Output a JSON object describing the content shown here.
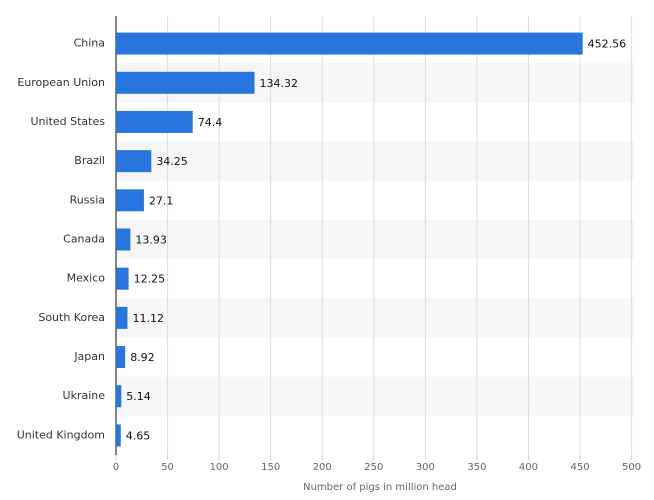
{
  "chart_data": {
    "type": "bar",
    "orientation": "horizontal",
    "categories": [
      "China",
      "European Union",
      "United States",
      "Brazil",
      "Russia",
      "Canada",
      "Mexico",
      "South Korea",
      "Japan",
      "Ukraine",
      "United Kingdom"
    ],
    "values": [
      452.56,
      134.32,
      74.4,
      34.25,
      27.1,
      13.93,
      12.25,
      11.12,
      8.92,
      5.14,
      4.65
    ],
    "color": "#2876dd",
    "xlabel": "Number of pigs in million head",
    "xlim": [
      0,
      500
    ],
    "xticks": [
      0,
      50,
      100,
      150,
      200,
      250,
      300,
      350,
      400,
      450,
      500
    ],
    "grid": true
  }
}
